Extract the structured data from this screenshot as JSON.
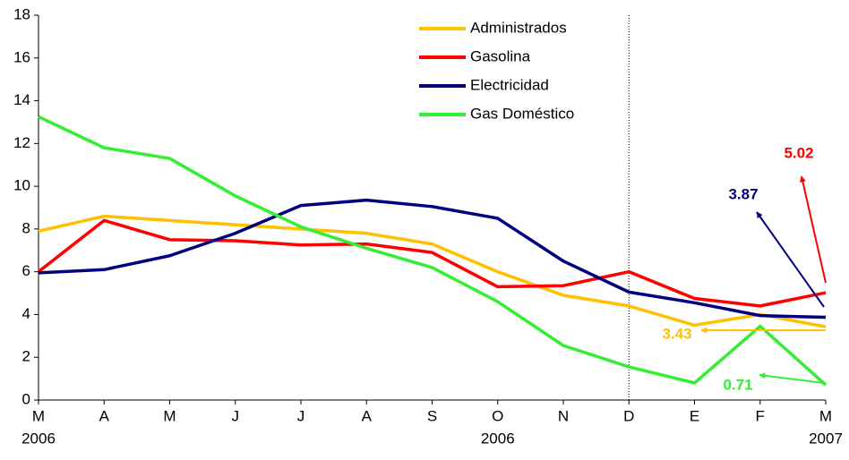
{
  "chart_data": {
    "type": "line",
    "categories": [
      "M",
      "A",
      "M",
      "J",
      "J",
      "A",
      "S",
      "O",
      "N",
      "D",
      "E",
      "F",
      "M"
    ],
    "year_labels": [
      "2006",
      null,
      null,
      null,
      null,
      null,
      null,
      "2006",
      null,
      null,
      null,
      null,
      "2007"
    ],
    "series": [
      {
        "name": "Administrados",
        "color": "#ffc000",
        "values": [
          7.9,
          8.6,
          8.4,
          8.2,
          8.0,
          7.8,
          7.3,
          6.0,
          4.9,
          4.4,
          3.5,
          4.0,
          3.43
        ]
      },
      {
        "name": "Gasolina",
        "color": "#ff0000",
        "values": [
          6.0,
          8.4,
          7.5,
          7.45,
          7.25,
          7.3,
          6.9,
          5.3,
          5.35,
          6.0,
          4.75,
          4.4,
          5.02
        ]
      },
      {
        "name": "Electricidad",
        "color": "#000080",
        "values": [
          5.95,
          6.1,
          6.75,
          7.8,
          9.1,
          9.35,
          9.05,
          8.5,
          6.5,
          5.05,
          4.55,
          3.95,
          3.87
        ]
      },
      {
        "name": "Gas Doméstico",
        "color": "#33ee33",
        "values": [
          13.25,
          11.8,
          11.3,
          9.55,
          8.1,
          7.1,
          6.2,
          4.6,
          2.55,
          1.55,
          0.8,
          3.45,
          0.71
        ]
      }
    ],
    "annotations": [
      {
        "text": "5.02",
        "color": "#ff0000"
      },
      {
        "text": "3.87",
        "color": "#000080"
      },
      {
        "text": "3.43",
        "color": "#ffc000"
      },
      {
        "text": "0.71",
        "color": "#33ee33"
      }
    ],
    "ylim": [
      0,
      18
    ],
    "yticks": [
      0,
      2,
      4,
      6,
      8,
      10,
      12,
      14,
      16,
      18
    ],
    "grid": false
  }
}
